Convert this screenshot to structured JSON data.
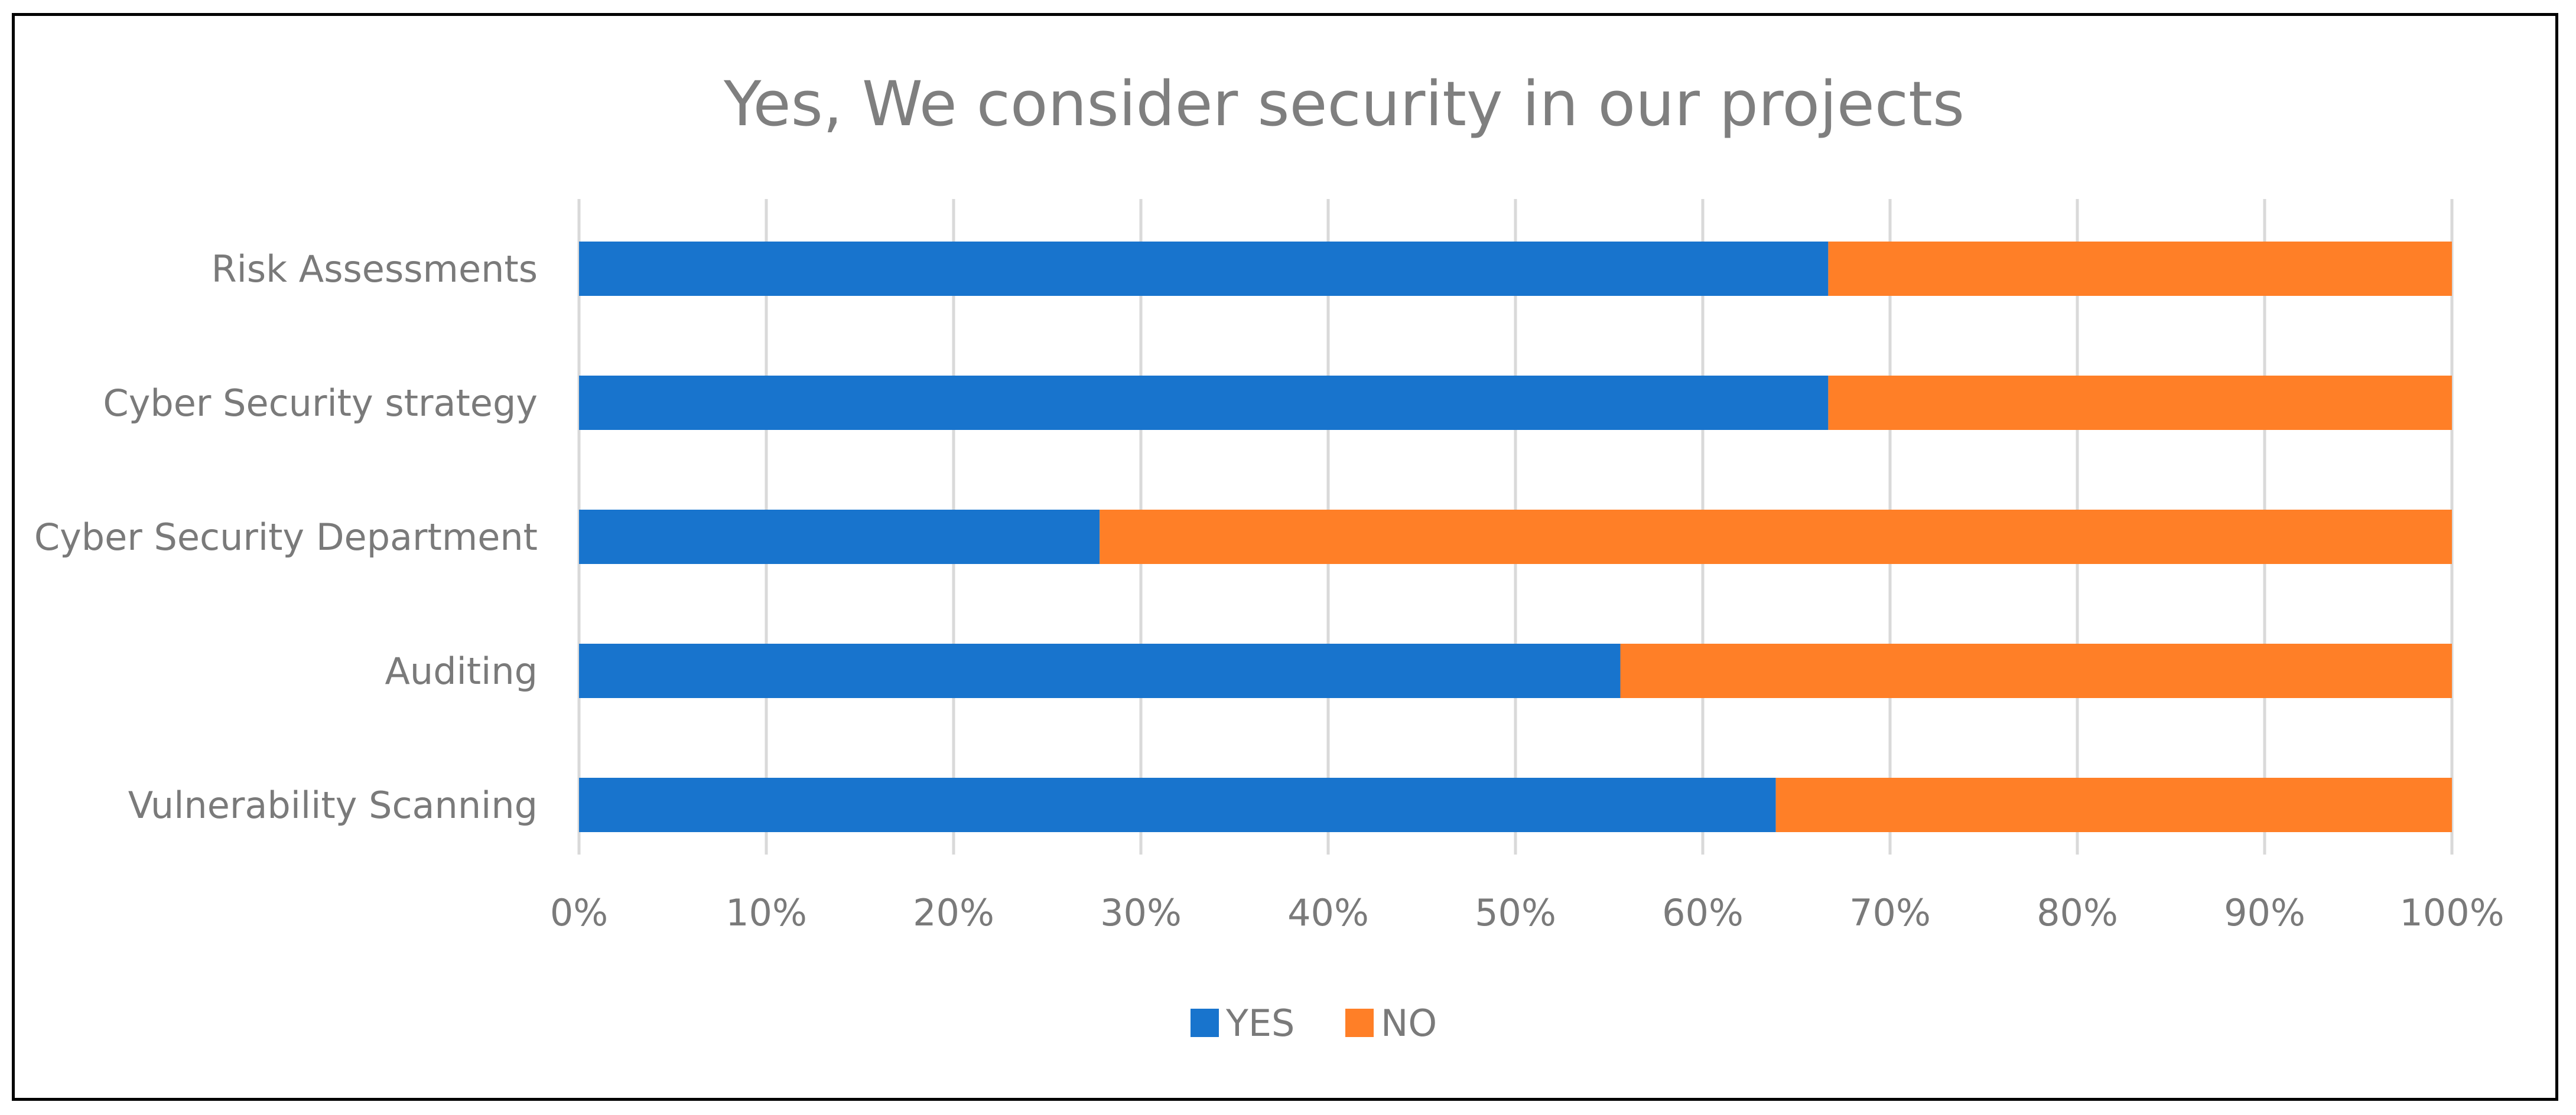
{
  "chart_data": {
    "type": "bar",
    "orientation": "horizontal",
    "stacked": "percent",
    "title": "Yes, We consider security in our projects",
    "categories": [
      "Risk Assessments",
      "Cyber Security strategy",
      "Cyber Security Department",
      "Auditing",
      "Vulnerability Scanning"
    ],
    "series": [
      {
        "name": "YES",
        "color": "#1874cd",
        "values": [
          66.7,
          66.7,
          27.8,
          55.6,
          63.9
        ]
      },
      {
        "name": "NO",
        "color": "#ff7f27",
        "values": [
          33.3,
          33.3,
          72.2,
          44.4,
          36.1
        ]
      }
    ],
    "xlim": [
      0,
      100
    ],
    "x_ticks": [
      "0%",
      "10%",
      "20%",
      "30%",
      "40%",
      "50%",
      "60%",
      "70%",
      "80%",
      "90%",
      "100%"
    ],
    "grid": true,
    "legend_position": "bottom",
    "xlabel": "",
    "ylabel": ""
  }
}
